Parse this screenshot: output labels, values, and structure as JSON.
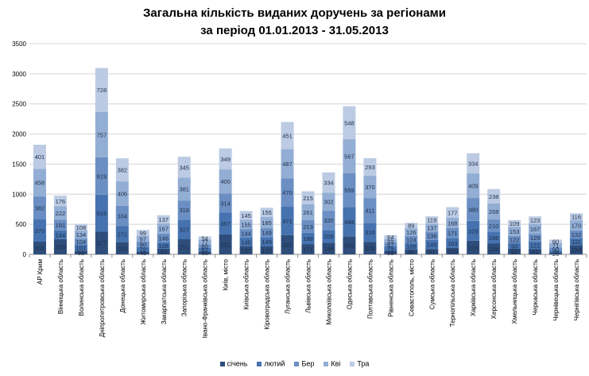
{
  "chart_data": {
    "type": "bar",
    "stacked": true,
    "title": "Загальна кількість виданих доручень за регіонами",
    "subtitle": "за період 01.01.2013 - 31.05.2013",
    "ylim": [
      0,
      3500
    ],
    "yticks": [
      0,
      500,
      1000,
      1500,
      2000,
      2500,
      3000,
      3500
    ],
    "grid": true,
    "legend_position": "bottom",
    "categories": [
      "АР Крим",
      "Вінницька область",
      "Волинська область",
      "Дніпропетровська область",
      "Донецька область",
      "Житомирська область",
      "Закарпатська область",
      "Запорізька область",
      "Івано-Франківська область",
      "Київ, місто",
      "Київська область",
      "Кіровоградська область",
      "Луганська область",
      "Львівська область",
      "Миколаївська область",
      "Одеська область",
      "Полтавська область",
      "Рівненська область",
      "Севастополь, місто",
      "Сумська область",
      "Тернопільська область",
      "Харківська область",
      "Херсонська область",
      "Хмельницька область",
      "Черкаська область",
      "Чернівецька область",
      "Чернігівська область"
    ],
    "series": [
      {
        "name": "січень",
        "color": "#2e4d7b",
        "values": [
          211,
          253,
          58,
          377,
          203,
          49,
          93,
          251,
          50,
          331,
          137,
          137,
          321,
          171,
          196,
          300,
          209,
          59,
          80,
          91,
          106,
          228,
          184,
          93,
          91,
          26,
          154
        ]
      },
      {
        "name": "лютий",
        "color": "#4673b0",
        "values": [
          370,
          144,
          101,
          616,
          271,
          72,
          108,
          327,
          57,
          367,
          140,
          149,
          471,
          188,
          209,
          488,
          316,
          75,
          105,
          149,
          163,
          329,
          186,
          93,
          121,
          38,
          111
        ]
      },
      {
        "name": "Бер",
        "color": "#6b8fc3",
        "values": [
          382,
          181,
          104,
          619,
          334,
          90,
          146,
          318,
          60,
          314,
          144,
          149,
          470,
          213,
          320,
          559,
          411,
          67,
          124,
          136,
          171,
          380,
          210,
          122,
          129,
          50,
          132
        ]
      },
      {
        "name": "Кві",
        "color": "#93aed4",
        "values": [
          458,
          222,
          134,
          757,
          406,
          97,
          167,
          381,
          77,
          400,
          155,
          185,
          487,
          261,
          302,
          567,
          370,
          55,
          126,
          137,
          168,
          409,
          268,
          153,
          167,
          71,
          170
        ]
      },
      {
        "name": "Тра",
        "color": "#bccbe3",
        "values": [
          401,
          176,
          108,
          728,
          382,
          99,
          137,
          345,
          54,
          349,
          145,
          155,
          451,
          215,
          334,
          548,
          293,
          64,
          89,
          119,
          177,
          334,
          238,
          109,
          123,
          60,
          116
        ]
      }
    ]
  }
}
